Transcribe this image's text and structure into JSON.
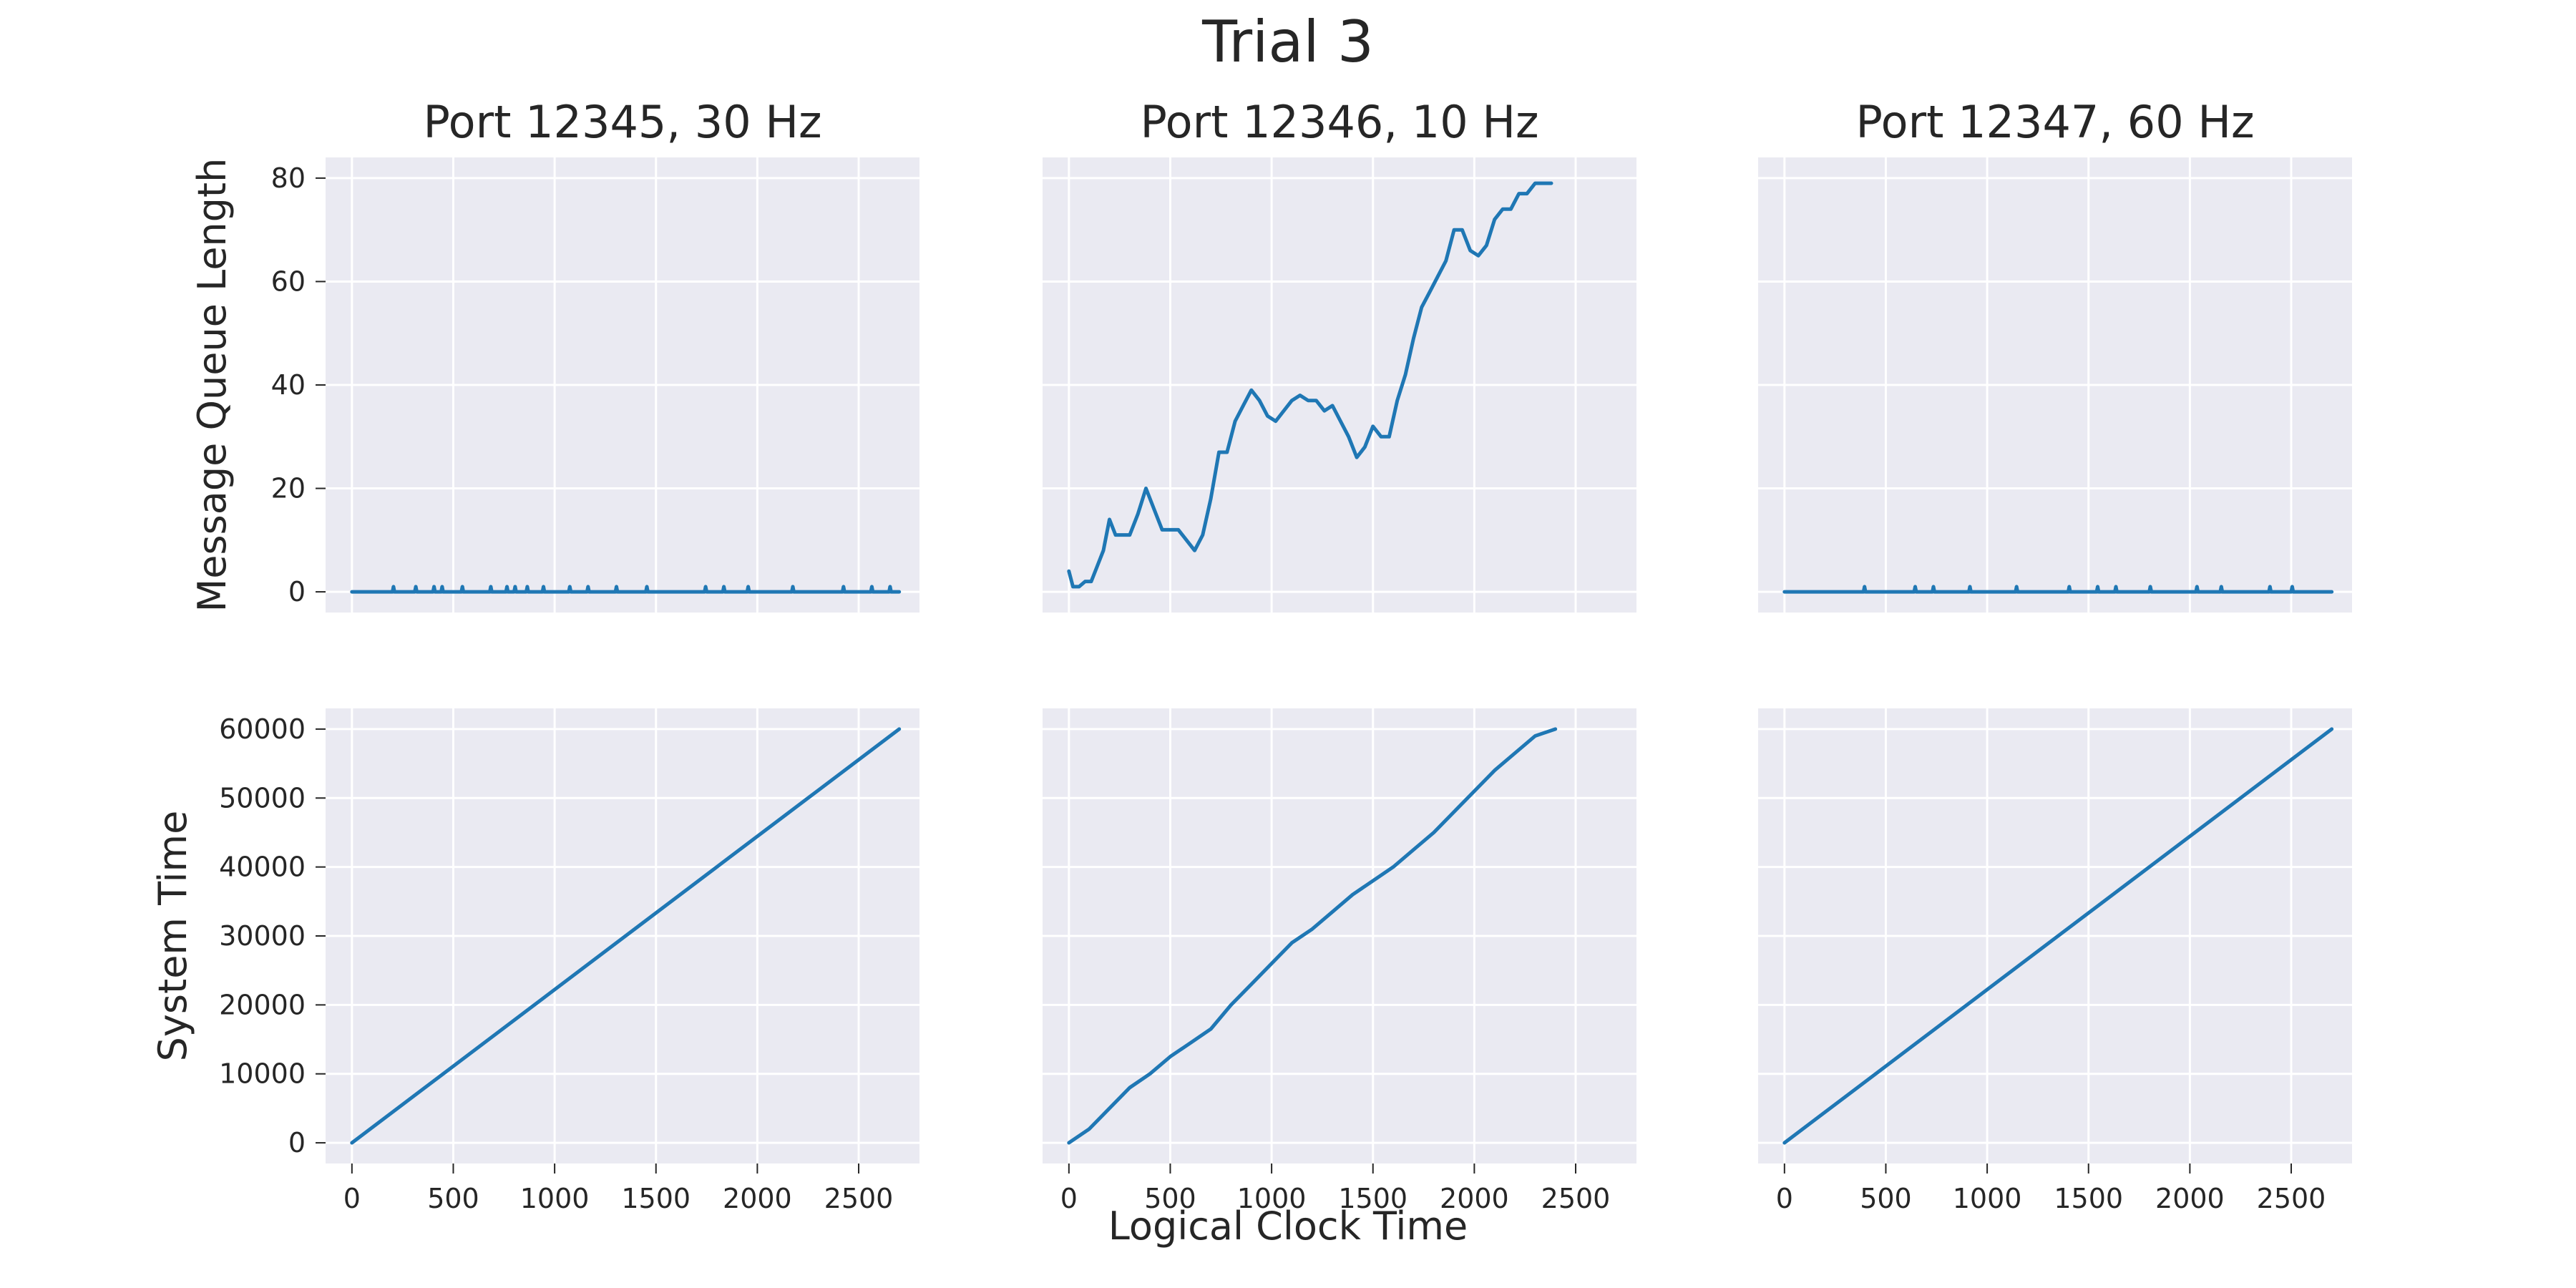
{
  "suptitle": "Trial 3",
  "xlabel": "Logical Clock Time",
  "colors": {
    "background": "#ffffff",
    "axes_face": "#EAEAF2",
    "grid": "#ffffff",
    "line": "#1F77B4",
    "text": "#262626"
  },
  "chart_data": [
    {
      "type": "line",
      "title": "Port 12345, 30 Hz",
      "xlabel": "",
      "ylabel": "Message Queue Length",
      "xlim": [
        -130,
        2800
      ],
      "ylim": [
        -4,
        84
      ],
      "xticks": [
        0,
        500,
        1000,
        1500,
        2000,
        2500
      ],
      "yticks": [
        0,
        20,
        40,
        60,
        80
      ],
      "grid": true,
      "series": [
        {
          "x": [
            0,
            200,
            205,
            210,
            310,
            315,
            320,
            400,
            405,
            410,
            440,
            445,
            450,
            540,
            545,
            550,
            680,
            685,
            690,
            760,
            765,
            770,
            800,
            805,
            810,
            860,
            865,
            870,
            940,
            945,
            950,
            1070,
            1075,
            1080,
            1160,
            1165,
            1170,
            1300,
            1305,
            1310,
            1450,
            1455,
            1460,
            1740,
            1745,
            1750,
            1830,
            1835,
            1840,
            1950,
            1955,
            1960,
            2170,
            2175,
            2180,
            2420,
            2425,
            2430,
            2560,
            2565,
            2570,
            2650,
            2655,
            2660,
            2700
          ],
          "y": [
            0,
            0,
            1,
            0,
            0,
            1,
            0,
            0,
            1,
            0,
            0,
            1,
            0,
            0,
            1,
            0,
            0,
            1,
            0,
            0,
            1,
            0,
            0,
            1,
            0,
            0,
            1,
            0,
            0,
            1,
            0,
            0,
            1,
            0,
            0,
            1,
            0,
            0,
            1,
            0,
            0,
            1,
            0,
            0,
            1,
            0,
            0,
            1,
            0,
            0,
            1,
            0,
            0,
            1,
            0,
            0,
            1,
            0,
            0,
            1,
            0,
            0,
            1,
            0,
            0
          ]
        }
      ]
    },
    {
      "type": "line",
      "title": "Port 12346, 10 Hz",
      "xlabel": "",
      "ylabel": "",
      "xlim": [
        -130,
        2800
      ],
      "ylim": [
        -4,
        84
      ],
      "xticks": [
        0,
        500,
        1000,
        1500,
        2000,
        2500
      ],
      "yticks": [
        0,
        20,
        40,
        60,
        80
      ],
      "grid": true,
      "series": [
        {
          "x": [
            0,
            20,
            50,
            80,
            110,
            140,
            170,
            200,
            230,
            260,
            300,
            340,
            380,
            420,
            460,
            500,
            540,
            580,
            620,
            660,
            700,
            740,
            780,
            820,
            860,
            900,
            940,
            980,
            1020,
            1060,
            1100,
            1140,
            1180,
            1220,
            1260,
            1300,
            1340,
            1380,
            1420,
            1460,
            1500,
            1540,
            1580,
            1620,
            1660,
            1700,
            1740,
            1780,
            1820,
            1860,
            1900,
            1940,
            1980,
            2020,
            2060,
            2100,
            2140,
            2180,
            2220,
            2260,
            2300,
            2340,
            2380
          ],
          "y": [
            4,
            1,
            1,
            2,
            2,
            5,
            8,
            14,
            11,
            11,
            11,
            15,
            20,
            16,
            12,
            12,
            12,
            10,
            8,
            11,
            18,
            27,
            27,
            33,
            36,
            39,
            37,
            34,
            33,
            35,
            37,
            38,
            37,
            37,
            35,
            36,
            33,
            30,
            26,
            28,
            32,
            30,
            30,
            37,
            42,
            49,
            55,
            58,
            61,
            64,
            70,
            70,
            66,
            65,
            67,
            72,
            74,
            74,
            77,
            77,
            79,
            79,
            79
          ]
        }
      ]
    },
    {
      "type": "line",
      "title": "Port 12347, 60 Hz",
      "xlabel": "",
      "ylabel": "",
      "xlim": [
        -130,
        2800
      ],
      "ylim": [
        -4,
        84
      ],
      "xticks": [
        0,
        500,
        1000,
        1500,
        2000,
        2500
      ],
      "yticks": [
        0,
        20,
        40,
        60,
        80
      ],
      "grid": true,
      "series": [
        {
          "x": [
            0,
            390,
            395,
            400,
            640,
            645,
            650,
            730,
            735,
            740,
            910,
            915,
            920,
            1140,
            1145,
            1150,
            1400,
            1405,
            1410,
            1540,
            1545,
            1550,
            1630,
            1635,
            1640,
            1800,
            1805,
            1810,
            2030,
            2035,
            2040,
            2150,
            2155,
            2160,
            2390,
            2395,
            2400,
            2500,
            2505,
            2510,
            2700
          ],
          "y": [
            0,
            0,
            1,
            0,
            0,
            1,
            0,
            0,
            1,
            0,
            0,
            1,
            0,
            0,
            1,
            0,
            0,
            1,
            0,
            0,
            1,
            0,
            0,
            1,
            0,
            0,
            1,
            0,
            0,
            1,
            0,
            0,
            1,
            0,
            0,
            1,
            0,
            0,
            1,
            0,
            0
          ]
        }
      ]
    },
    {
      "type": "line",
      "title": "",
      "xlabel": "",
      "ylabel": "System Time",
      "xlim": [
        -130,
        2800
      ],
      "ylim": [
        -3000,
        63000
      ],
      "xticks": [
        0,
        500,
        1000,
        1500,
        2000,
        2500
      ],
      "xticklabels": [
        "0",
        "500",
        "1000",
        "1500",
        "2000",
        "2500"
      ],
      "yticks": [
        0,
        10000,
        20000,
        30000,
        40000,
        50000,
        60000
      ],
      "yticklabels": [
        "0",
        "10000",
        "20000",
        "30000",
        "40000",
        "50000",
        "60000"
      ],
      "grid": true,
      "series": [
        {
          "x": [
            0,
            450,
            900,
            1350,
            1800,
            2250,
            2700
          ],
          "y": [
            0,
            10000,
            20000,
            30000,
            40000,
            50000,
            60000
          ]
        }
      ]
    },
    {
      "type": "line",
      "title": "",
      "xlabel": "Logical Clock Time",
      "ylabel": "",
      "xlim": [
        -130,
        2800
      ],
      "ylim": [
        -3000,
        63000
      ],
      "xticks": [
        0,
        500,
        1000,
        1500,
        2000,
        2500
      ],
      "xticklabels": [
        "0",
        "500",
        "1000",
        "1500",
        "2000",
        "2500"
      ],
      "yticks": [
        0,
        10000,
        20000,
        30000,
        40000,
        50000,
        60000
      ],
      "grid": true,
      "series": [
        {
          "x": [
            0,
            100,
            200,
            300,
            400,
            500,
            600,
            700,
            800,
            900,
            1000,
            1100,
            1200,
            1300,
            1400,
            1500,
            1600,
            1700,
            1800,
            1900,
            2000,
            2100,
            2200,
            2300,
            2400
          ],
          "y": [
            0,
            2000,
            5000,
            8000,
            10000,
            12500,
            14500,
            16500,
            20000,
            23000,
            26000,
            29000,
            31000,
            33500,
            36000,
            38000,
            40000,
            42500,
            45000,
            48000,
            51000,
            54000,
            56500,
            59000,
            60000
          ]
        }
      ]
    },
    {
      "type": "line",
      "title": "",
      "xlabel": "",
      "ylabel": "",
      "xlim": [
        -130,
        2800
      ],
      "ylim": [
        -3000,
        63000
      ],
      "xticks": [
        0,
        500,
        1000,
        1500,
        2000,
        2500
      ],
      "xticklabels": [
        "0",
        "500",
        "1000",
        "1500",
        "2000",
        "2500"
      ],
      "yticks": [
        0,
        10000,
        20000,
        30000,
        40000,
        50000,
        60000
      ],
      "grid": true,
      "series": [
        {
          "x": [
            0,
            2700
          ],
          "y": [
            0,
            60000
          ]
        }
      ]
    }
  ]
}
